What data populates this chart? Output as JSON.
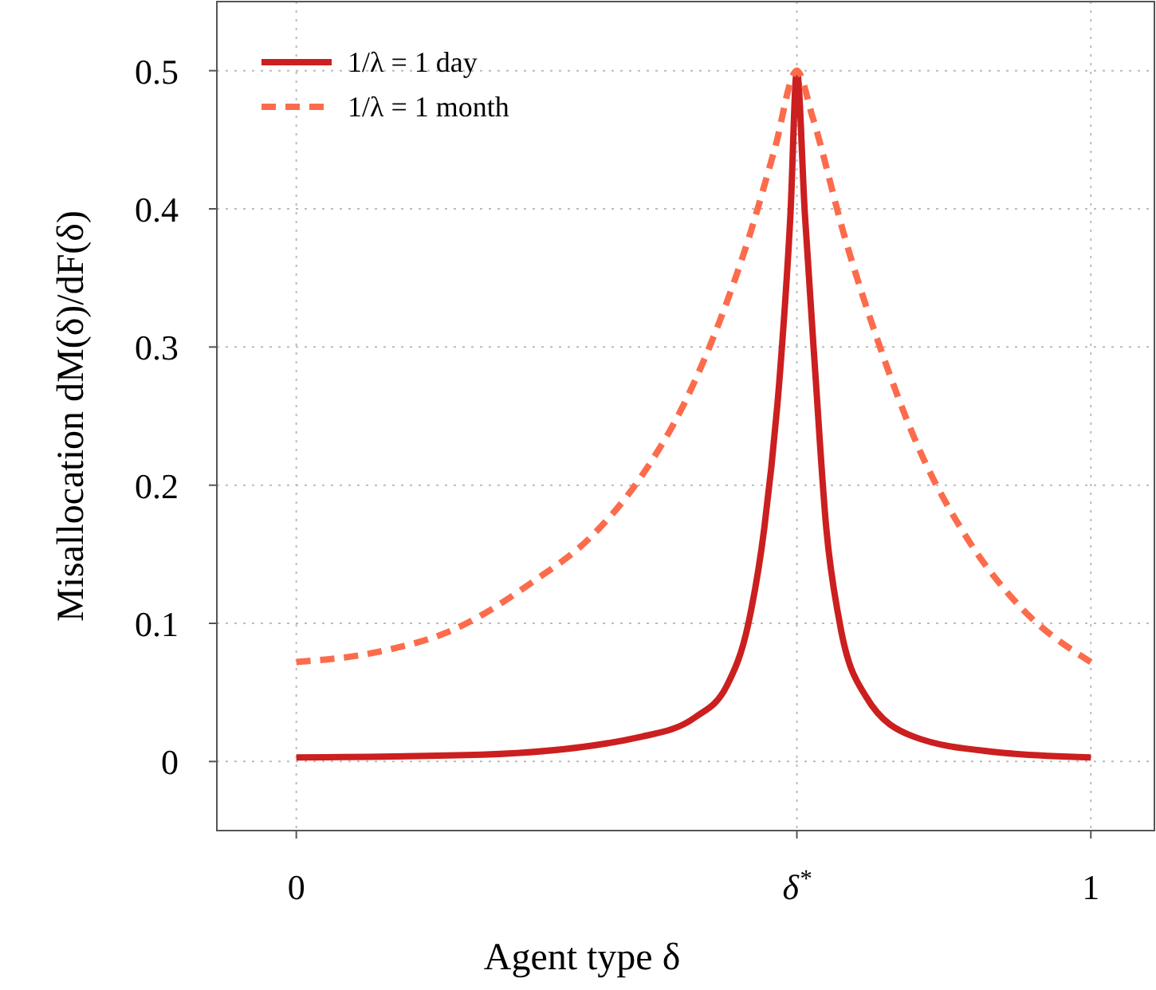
{
  "chart_data": {
    "type": "line",
    "xlabel": "Agent type δ",
    "ylabel": "Misallocation dM(δ)/dF(δ)",
    "xlim": [
      -0.1,
      1.08
    ],
    "ylim": [
      -0.05,
      0.55
    ],
    "xticks": [
      0,
      {
        "value": 0.63,
        "label": "δ$^{*}$"
      },
      1
    ],
    "yticks": [
      0,
      0.1,
      0.2,
      0.3,
      0.4,
      0.5
    ],
    "grid": true,
    "legend": "top left",
    "series": [
      {
        "name": "1/λ = 1 day",
        "color": "#cc1f1f",
        "line_style": "solid",
        "x": [
          0,
          0.234,
          0.435,
          0.502,
          0.542,
          0.569,
          0.589,
          0.609,
          0.622,
          0.63,
          0.64,
          0.653,
          0.667,
          0.684,
          0.717,
          0.777,
          0.877,
          1
        ],
        "values": [
          0.003,
          0.005,
          0.018,
          0.032,
          0.055,
          0.1,
          0.169,
          0.283,
          0.397,
          0.5,
          0.397,
          0.283,
          0.169,
          0.1,
          0.047,
          0.018,
          0.007,
          0.003
        ]
      },
      {
        "name": "1/λ = 1 month",
        "color": "#fc6c4c",
        "line_style": "dashed",
        "x": [
          0,
          0.1,
          0.2,
          0.3,
          0.368,
          0.435,
          0.489,
          0.529,
          0.569,
          0.602,
          0.63,
          0.65,
          0.691,
          0.731,
          0.784,
          0.845,
          0.911,
          1
        ],
        "values": [
          0.072,
          0.079,
          0.096,
          0.131,
          0.161,
          0.207,
          0.26,
          0.313,
          0.378,
          0.443,
          0.5,
          0.466,
          0.378,
          0.306,
          0.226,
          0.161,
          0.112,
          0.072
        ]
      }
    ]
  }
}
